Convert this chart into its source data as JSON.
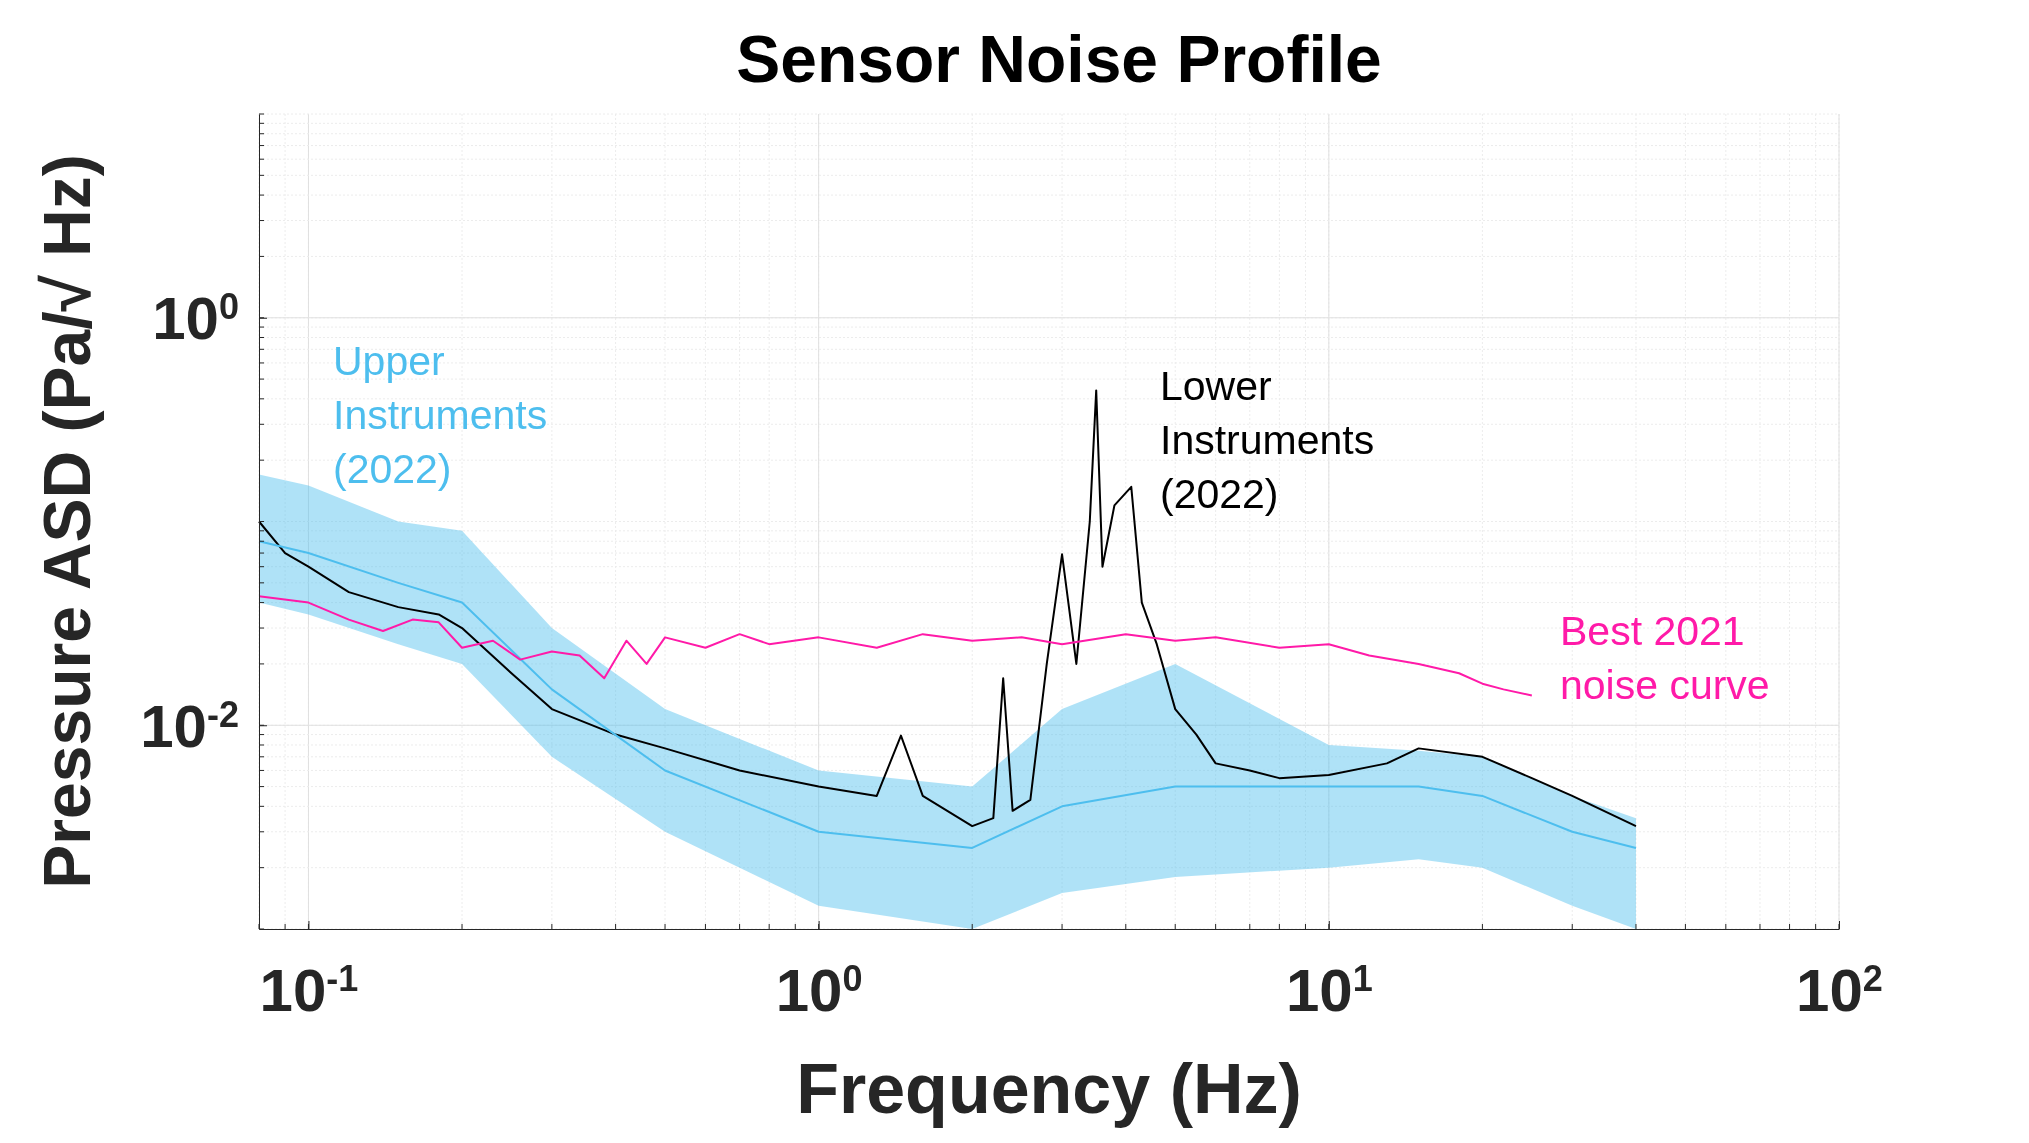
{
  "chart_data": {
    "type": "line",
    "title": "Sensor Noise Profile",
    "xlabel": "Frequency (Hz)",
    "ylabel": "Pressure ASD (Pa/√ Hz)",
    "log": "xy",
    "xlim": [
      0.08,
      100
    ],
    "ylim": [
      0.001,
      10
    ],
    "xticks": [
      {
        "value": 0.1,
        "label": "10$^{-1}$"
      },
      {
        "value": 1,
        "label": "10$^{0}$"
      },
      {
        "value": 10,
        "label": "10$^{1}$"
      },
      {
        "value": 100,
        "label": "10$^{2}$"
      }
    ],
    "yticks": [
      {
        "value": 0.01,
        "label": "10$^{-2}$"
      },
      {
        "value": 1,
        "label": "10$^{0}$"
      }
    ],
    "grid": true,
    "series": [
      {
        "name": "Lower Instruments (2022)",
        "color": "#000000",
        "x": [
          0.08,
          0.09,
          0.1,
          0.12,
          0.15,
          0.18,
          0.2,
          0.25,
          0.3,
          0.4,
          0.5,
          0.7,
          1,
          1.3,
          1.45,
          1.6,
          2,
          2.2,
          2.3,
          2.4,
          2.6,
          2.8,
          3,
          3.2,
          3.4,
          3.5,
          3.6,
          3.8,
          4.1,
          4.3,
          4.6,
          5,
          5.5,
          6,
          7,
          8,
          10,
          13,
          15,
          20,
          25,
          30,
          40
        ],
        "values": [
          0.1,
          0.07,
          0.06,
          0.045,
          0.038,
          0.035,
          0.03,
          0.018,
          0.012,
          0.009,
          0.0077,
          0.006,
          0.005,
          0.0045,
          0.0089,
          0.0045,
          0.0032,
          0.0035,
          0.017,
          0.0038,
          0.0043,
          0.02,
          0.069,
          0.02,
          0.1,
          0.44,
          0.06,
          0.12,
          0.148,
          0.04,
          0.025,
          0.012,
          0.009,
          0.0065,
          0.006,
          0.0055,
          0.0057,
          0.0065,
          0.0077,
          0.007,
          0.0055,
          0.0045,
          0.0032
        ]
      },
      {
        "name": "Upper Instruments (2022)",
        "color": "#4dbeee",
        "x": [
          0.08,
          0.1,
          0.15,
          0.2,
          0.3,
          0.5,
          1,
          2,
          3,
          5,
          10,
          15,
          20,
          30,
          40
        ],
        "values": [
          0.08,
          0.07,
          0.05,
          0.04,
          0.015,
          0.006,
          0.003,
          0.0025,
          0.004,
          0.005,
          0.005,
          0.005,
          0.0045,
          0.003,
          0.0025
        ],
        "lower": [
          0.04,
          0.035,
          0.025,
          0.02,
          0.007,
          0.003,
          0.0013,
          0.001,
          0.0015,
          0.0018,
          0.002,
          0.0022,
          0.002,
          0.0013,
          0.001
        ],
        "upper": [
          0.17,
          0.15,
          0.1,
          0.09,
          0.03,
          0.012,
          0.006,
          0.005,
          0.012,
          0.02,
          0.008,
          0.0075,
          0.007,
          0.0045,
          0.0035
        ]
      },
      {
        "name": "Best 2021 noise curve",
        "color": "#ff1aa8",
        "x": [
          0.08,
          0.1,
          0.12,
          0.14,
          0.16,
          0.18,
          0.2,
          0.23,
          0.26,
          0.3,
          0.34,
          0.38,
          0.42,
          0.46,
          0.5,
          0.6,
          0.7,
          0.8,
          1,
          1.3,
          1.6,
          2,
          2.5,
          3,
          4,
          5,
          6,
          8,
          10,
          12,
          15,
          18,
          20,
          22,
          25
        ],
        "values": [
          0.043,
          0.04,
          0.033,
          0.029,
          0.033,
          0.032,
          0.024,
          0.026,
          0.021,
          0.023,
          0.022,
          0.017,
          0.026,
          0.02,
          0.027,
          0.024,
          0.028,
          0.025,
          0.027,
          0.024,
          0.028,
          0.026,
          0.027,
          0.025,
          0.028,
          0.026,
          0.027,
          0.024,
          0.025,
          0.022,
          0.02,
          0.018,
          0.016,
          0.015,
          0.014
        ]
      }
    ]
  }
}
